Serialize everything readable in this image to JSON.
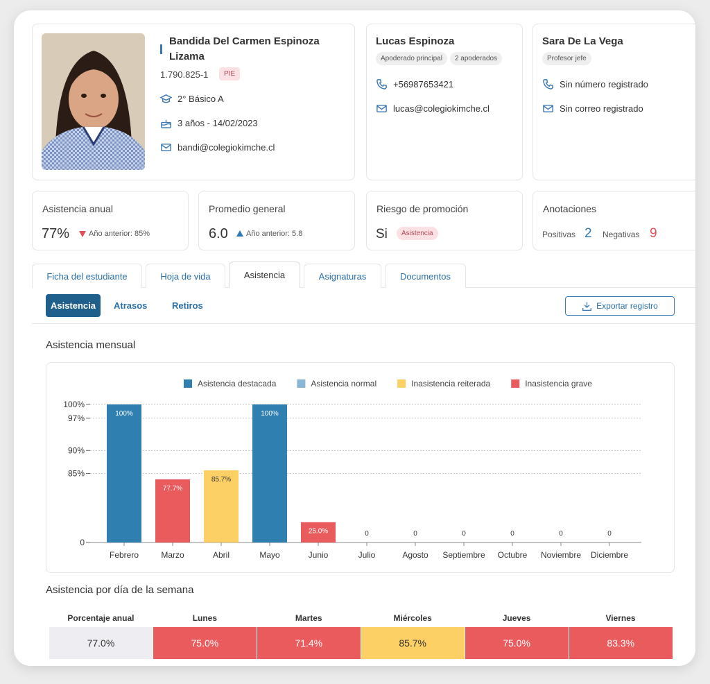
{
  "student": {
    "name": "Bandida Del Carmen Espinoza Lizama",
    "rut": "1.790.825-1",
    "tag": "PIE",
    "course": "2° Básico A",
    "age": "3 años - 14/02/2023",
    "email": "bandi@colegiokimche.cl"
  },
  "guardian": {
    "name": "Lucas Espinoza",
    "tags": [
      "Apoderado principal",
      "2 apoderados"
    ],
    "phone": "+56987653421",
    "email": "lucas@colegiokimche.cl"
  },
  "teacher": {
    "name": "Sara De La Vega",
    "tags": [
      "Profesor jefe"
    ],
    "phone": "Sin número registrado",
    "email": "Sin correo registrado"
  },
  "stats": {
    "attendance": {
      "label": "Asistencia anual",
      "value": "77%",
      "previous": "Año anterior: 85%"
    },
    "average": {
      "label": "Promedio general",
      "value": "6.0",
      "previous": "Año anterior: 5.8"
    },
    "risk": {
      "label": "Riesgo de promoción",
      "value": "Si",
      "tag": "Asistencia"
    },
    "notes": {
      "label": "Anotaciones",
      "positive_label": "Positivas",
      "positive": "2",
      "negative_label": "Negativas",
      "negative": "9"
    }
  },
  "tabs": [
    "Ficha del estudiante",
    "Hoja de vida",
    "Asistencia",
    "Asignaturas",
    "Documentos"
  ],
  "subtabs": [
    "Asistencia",
    "Atrasos",
    "Retiros"
  ],
  "export_button": "Exportar registro",
  "section_title": "Asistencia mensual",
  "chart_data": {
    "type": "bar",
    "legend": [
      {
        "name": "Asistencia destacada",
        "color": "#2f80b0"
      },
      {
        "name": "Asistencia normal",
        "color": "#8ab6d6"
      },
      {
        "name": "Inasistencia reiterada",
        "color": "#fcd064"
      },
      {
        "name": "Inasistencia grave",
        "color": "#ea5b5d"
      }
    ],
    "categories": [
      "Febrero",
      "Marzo",
      "Abril",
      "Mayo",
      "Junio",
      "Julio",
      "Agosto",
      "Septiembre",
      "Octubre",
      "Noviembre",
      "Diciembre"
    ],
    "values": [
      100,
      77.7,
      85.7,
      100,
      25.0,
      0,
      0,
      0,
      0,
      0,
      0
    ],
    "value_labels": [
      "100%",
      "77.7%",
      "85.7%",
      "100%",
      "25.0%",
      "0",
      "0",
      "0",
      "0",
      "0",
      "0"
    ],
    "bar_colors": [
      "#2f80b0",
      "#ea5b5d",
      "#fcd064",
      "#2f80b0",
      "#ea5b5d",
      null,
      null,
      null,
      null,
      null,
      null
    ],
    "ylim": [
      0,
      100
    ],
    "yticks": [
      0,
      {
        "value": 85,
        "label": "85%"
      },
      {
        "value": 90,
        "label": "90%"
      },
      {
        "value": 97,
        "label": "97%"
      },
      {
        "value": 100,
        "label": "100%"
      }
    ],
    "grid": true
  },
  "weekday": {
    "title": "Asistencia por día de la semana",
    "headers": [
      "Porcentaje anual",
      "Lunes",
      "Martes",
      "Miércoles",
      "Jueves",
      "Viernes"
    ],
    "values": [
      "77.0%",
      "75.0%",
      "71.4%",
      "85.7%",
      "75.0%",
      "83.3%"
    ],
    "colors": [
      "#eeeef2",
      "#ea5b5d",
      "#ea5b5d",
      "#fcd064",
      "#ea5b5d",
      "#ea5b5d"
    ]
  }
}
